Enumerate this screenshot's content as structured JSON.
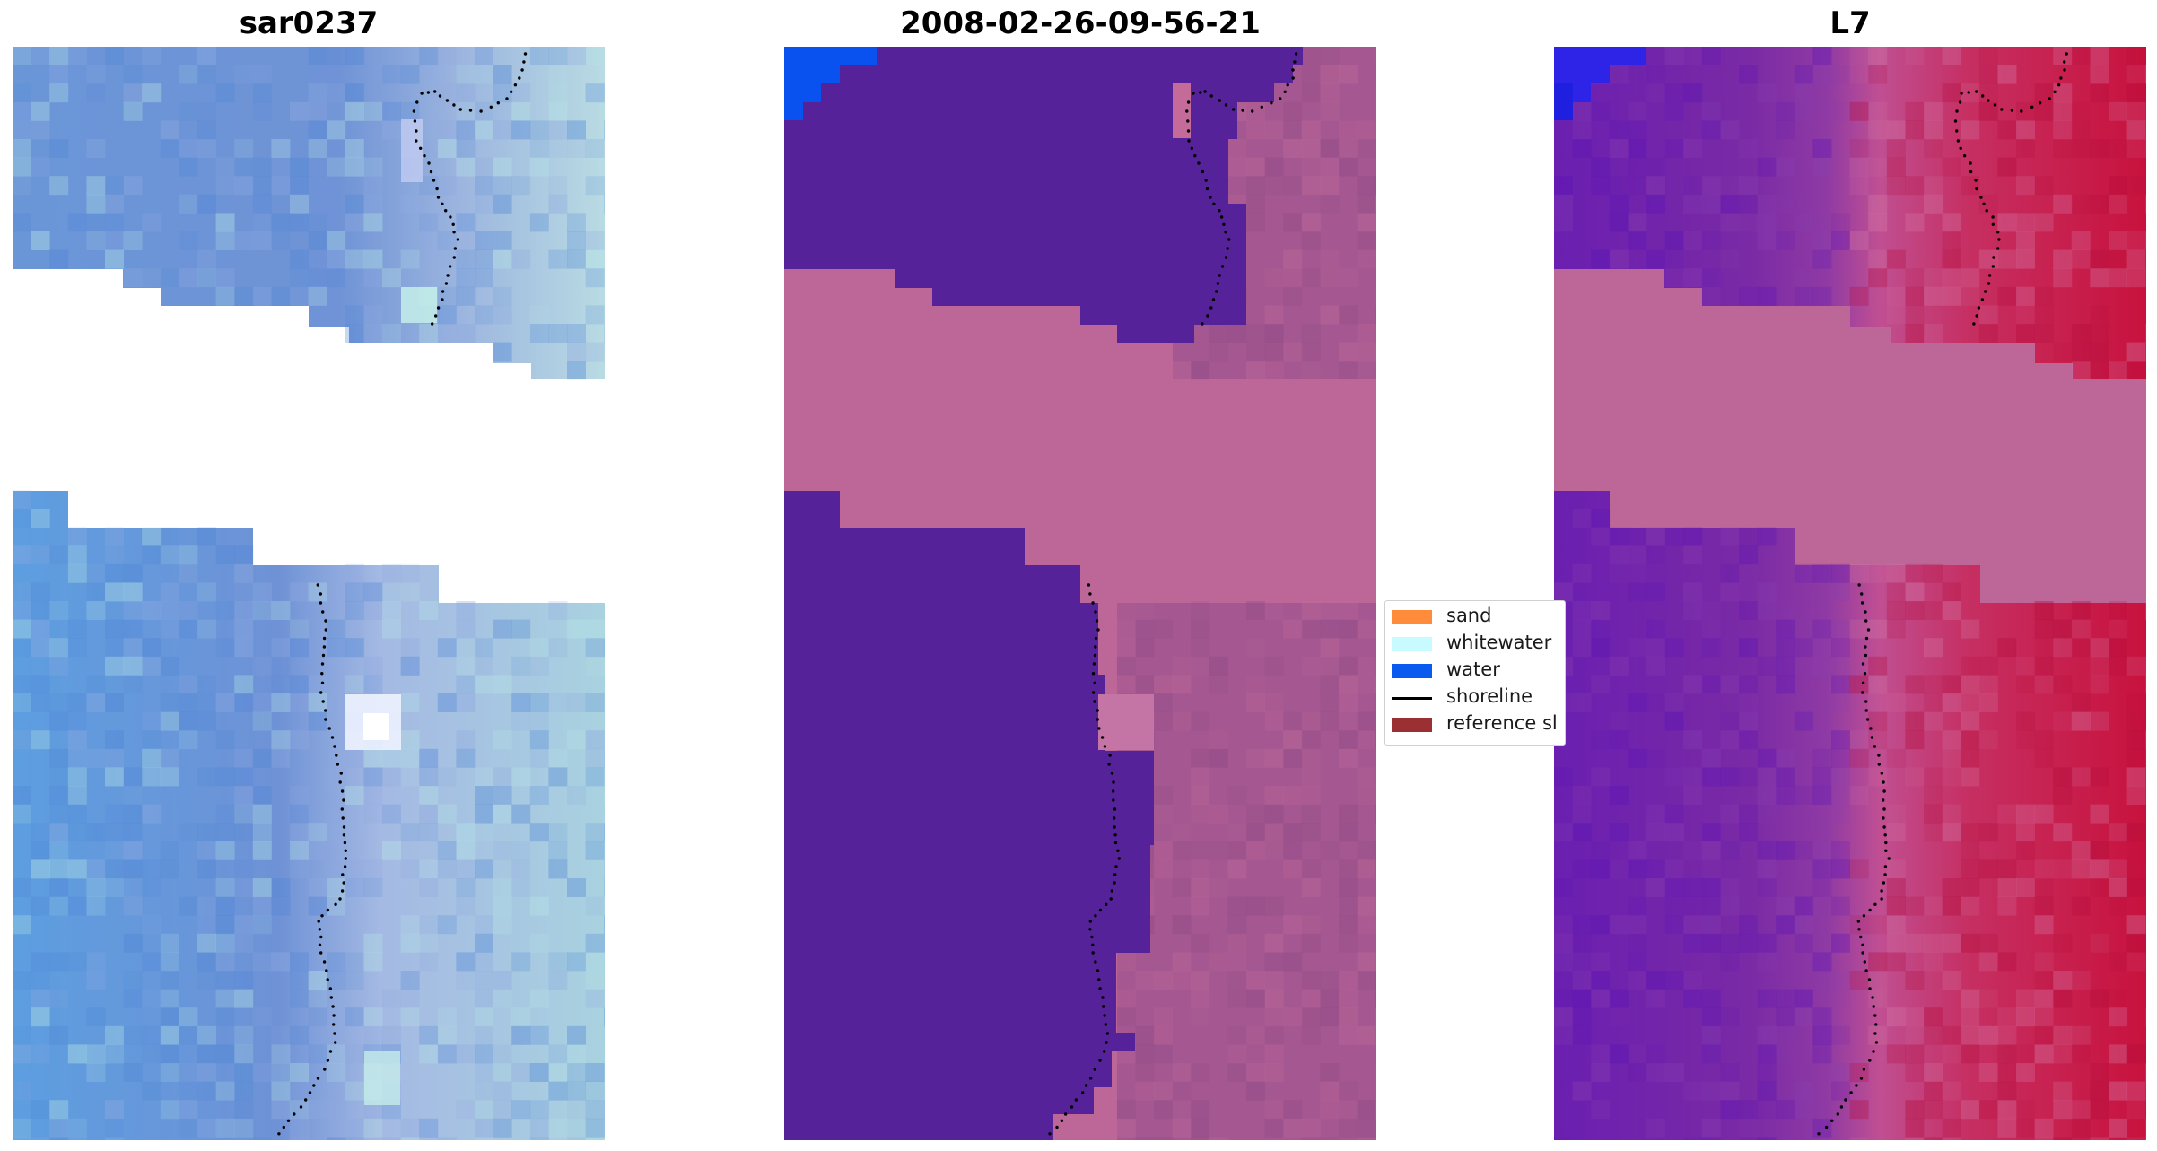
{
  "panels": [
    {
      "title": "sar0237"
    },
    {
      "title": "2008-02-26-09-56-21"
    },
    {
      "title": "L7"
    }
  ],
  "legend": {
    "items": [
      {
        "label": "sand",
        "color": "#ff8c3a"
      },
      {
        "label": "whitewater",
        "color": "#c8fbff"
      },
      {
        "label": "water",
        "color": "#0a5af0"
      },
      {
        "label": "shoreline",
        "color": "#000000"
      },
      {
        "label": "reference sl",
        "color": "#9b3033"
      }
    ]
  },
  "colors": {
    "nodata_class": "#bd6698",
    "classified_water": "#55229a",
    "ocean_rgb": "#6a97dc",
    "index_low": "#6a1fb0",
    "index_high": "#c8123d"
  }
}
